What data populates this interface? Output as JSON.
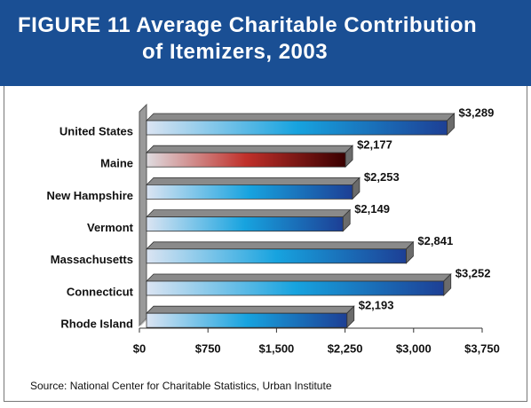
{
  "chart_data": {
    "type": "bar",
    "orientation": "horizontal",
    "figure_label": "FIGURE 11",
    "title": "Average Charitable Contribution of Itemizers, 2003",
    "categories": [
      "United States",
      "Maine",
      "New Hampshire",
      "Vermont",
      "Massachusetts",
      "Connecticut",
      "Rhode Island"
    ],
    "values": [
      3289,
      2177,
      2253,
      2149,
      2841,
      3252,
      2193
    ],
    "value_labels": [
      "$3,289",
      "$2,177",
      "$2,253",
      "$2,149",
      "$2,841",
      "$3,252",
      "$2,193"
    ],
    "colors": [
      "#1d3f95",
      "#3a0000",
      "#1d3f95",
      "#1d3f95",
      "#1d3f95",
      "#1d3f95",
      "#1d3f95"
    ],
    "xlim": [
      0,
      3750
    ],
    "xticks": [
      {
        "value": 0,
        "label": "$0"
      },
      {
        "value": 750,
        "label": "$750"
      },
      {
        "value": 1500,
        "label": "$1,500"
      },
      {
        "value": 2250,
        "label": "$2,250"
      },
      {
        "value": 3000,
        "label": "$3,000"
      },
      {
        "value": 3750,
        "label": "$3,750"
      }
    ],
    "grid": false,
    "source": "Source: National Center for Charitable Statistics, Urban Institute"
  }
}
